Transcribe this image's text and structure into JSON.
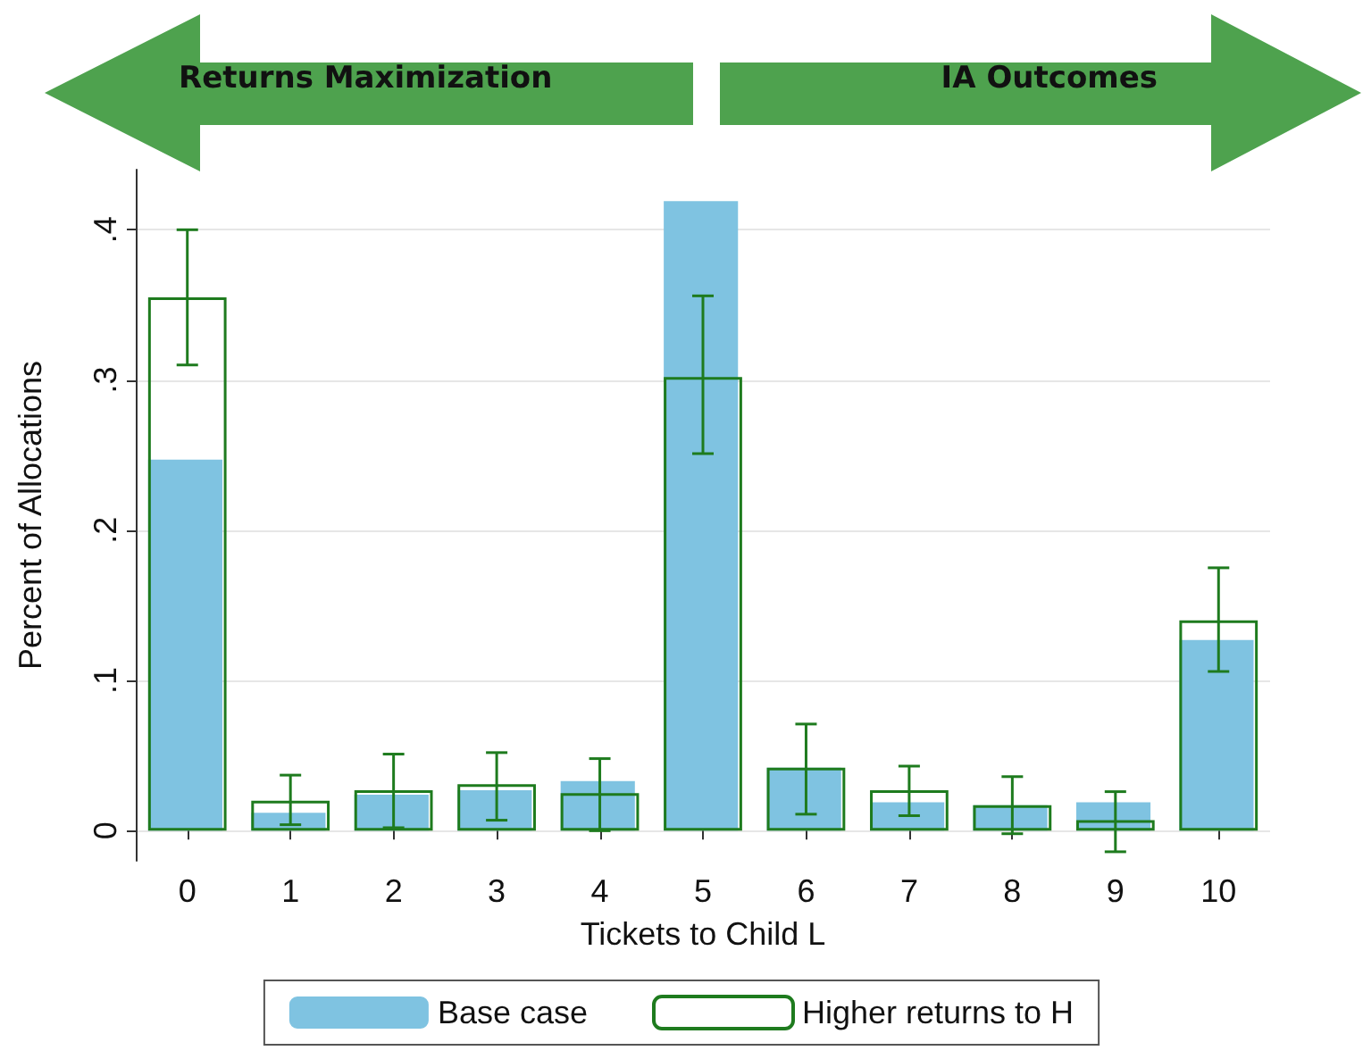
{
  "chart_data": {
    "type": "bar",
    "xlabel": "Tickets to Child L",
    "ylabel": "Percent of Allocations",
    "annotations": [
      "Returns Maximization",
      "IA Outcomes"
    ],
    "categories": [
      "0",
      "1",
      "2",
      "3",
      "4",
      "5",
      "6",
      "7",
      "8",
      "9",
      "10"
    ],
    "series": [
      {
        "name": "Base case",
        "color": "#7fc3e1",
        "values": [
          0.247,
          0.012,
          0.024,
          0.027,
          0.033,
          0.419,
          0.042,
          0.019,
          0.017,
          0.019,
          0.127
        ]
      },
      {
        "name": "Higher returns to H",
        "color": "#1e7b1e",
        "values": [
          0.355,
          0.02,
          0.027,
          0.031,
          0.025,
          0.302,
          0.042,
          0.027,
          0.017,
          0.007,
          0.14
        ],
        "errors": [
          [
            0.31,
            0.4
          ],
          [
            0.004,
            0.037
          ],
          [
            0.002,
            0.051
          ],
          [
            0.007,
            0.052
          ],
          [
            0,
            0.048
          ],
          [
            0.251,
            0.356
          ],
          [
            0.011,
            0.071
          ],
          [
            0.01,
            0.043
          ],
          [
            -0.002,
            0.036
          ],
          [
            -0.014,
            0.026
          ],
          [
            0.106,
            0.175
          ]
        ]
      }
    ],
    "ylim": [
      -0.02,
      0.44
    ],
    "yticks": [
      0,
      {
        "value": 0.1,
        "label": ".1"
      },
      {
        "value": 0.2,
        "label": ".2"
      },
      {
        "value": 0.3,
        "label": ".3"
      },
      {
        "value": 0.4,
        "label": ".4"
      }
    ],
    "grid": "y",
    "legend": "bottom"
  }
}
